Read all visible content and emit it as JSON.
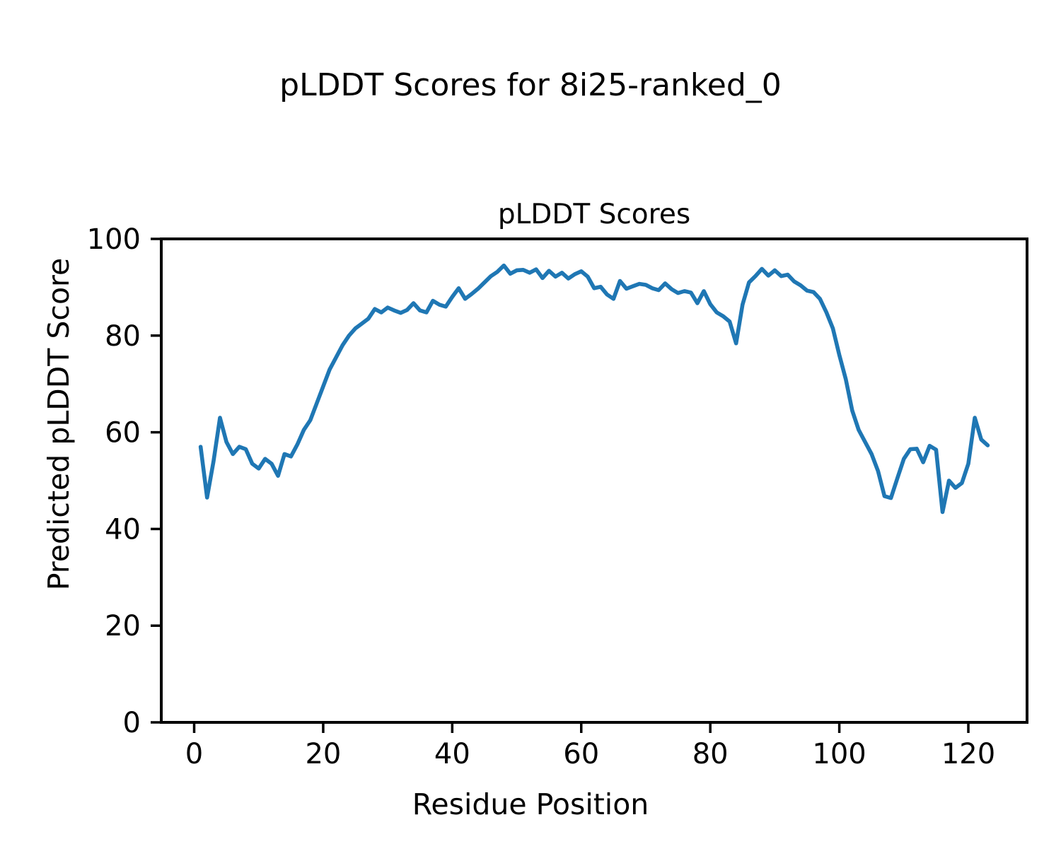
{
  "figure": {
    "suptitle": "pLDDT Scores for 8i25-ranked_0"
  },
  "chart_data": {
    "type": "line",
    "title": "pLDDT Scores",
    "suptitle": "pLDDT Scores for 8i25-ranked_0",
    "xlabel": "Residue Position",
    "ylabel": "Predicted pLDDT Score",
    "xlim": [
      -5.1,
      129.1
    ],
    "ylim": [
      0,
      100
    ],
    "xticks": [
      0,
      20,
      40,
      60,
      80,
      100,
      120
    ],
    "yticks": [
      0,
      20,
      40,
      60,
      80,
      100
    ],
    "grid": false,
    "legend": null,
    "line_color": "#1f77b4",
    "axis_color": "#000000",
    "x": [
      1,
      2,
      3,
      4,
      5,
      6,
      7,
      8,
      9,
      10,
      11,
      12,
      13,
      14,
      15,
      16,
      17,
      18,
      19,
      20,
      21,
      22,
      23,
      24,
      25,
      26,
      27,
      28,
      29,
      30,
      31,
      32,
      33,
      34,
      35,
      36,
      37,
      38,
      39,
      40,
      41,
      42,
      43,
      44,
      45,
      46,
      47,
      48,
      49,
      50,
      51,
      52,
      53,
      54,
      55,
      56,
      57,
      58,
      59,
      60,
      61,
      62,
      63,
      64,
      65,
      66,
      67,
      68,
      69,
      70,
      71,
      72,
      73,
      74,
      75,
      76,
      77,
      78,
      79,
      80,
      81,
      82,
      83,
      84,
      85,
      86,
      87,
      88,
      89,
      90,
      91,
      92,
      93,
      94,
      95,
      96,
      97,
      98,
      99,
      100,
      101,
      102,
      103,
      104,
      105,
      106,
      107,
      108,
      109,
      110,
      111,
      112,
      113,
      114,
      115,
      116,
      117,
      118,
      119,
      120,
      121,
      122,
      123
    ],
    "y": [
      57.0,
      46.5,
      54.0,
      63.0,
      58.0,
      55.5,
      57.0,
      56.5,
      53.5,
      52.5,
      54.5,
      53.5,
      51.0,
      55.5,
      55.0,
      57.5,
      60.5,
      62.5,
      66.0,
      69.5,
      73.0,
      75.5,
      78.0,
      80.0,
      81.5,
      82.5,
      83.5,
      85.5,
      84.8,
      85.8,
      85.2,
      84.7,
      85.3,
      86.7,
      85.2,
      84.8,
      87.2,
      86.4,
      86.0,
      88.0,
      89.8,
      87.6,
      88.6,
      89.7,
      91.0,
      92.3,
      93.2,
      94.5,
      92.8,
      93.5,
      93.6,
      93.0,
      93.7,
      91.9,
      93.4,
      92.2,
      93.0,
      91.8,
      92.7,
      93.3,
      92.2,
      89.8,
      90.1,
      88.5,
      87.6,
      91.3,
      89.7,
      90.2,
      90.7,
      90.5,
      89.8,
      89.4,
      90.8,
      89.6,
      88.8,
      89.2,
      88.9,
      86.7,
      89.2,
      86.5,
      84.8,
      84.0,
      82.9,
      78.4,
      86.4,
      91.0,
      92.3,
      93.8,
      92.4,
      93.5,
      92.3,
      92.6,
      91.2,
      90.4,
      89.3,
      89.0,
      87.6,
      84.8,
      81.5,
      76.0,
      71.0,
      64.5,
      60.5,
      58.0,
      55.5,
      52.0,
      46.8,
      46.4,
      50.5,
      54.5,
      56.5,
      56.6,
      53.8,
      57.2,
      56.4,
      43.5,
      50.0,
      48.5,
      49.5,
      53.5,
      63.0,
      58.5,
      57.3
    ]
  }
}
